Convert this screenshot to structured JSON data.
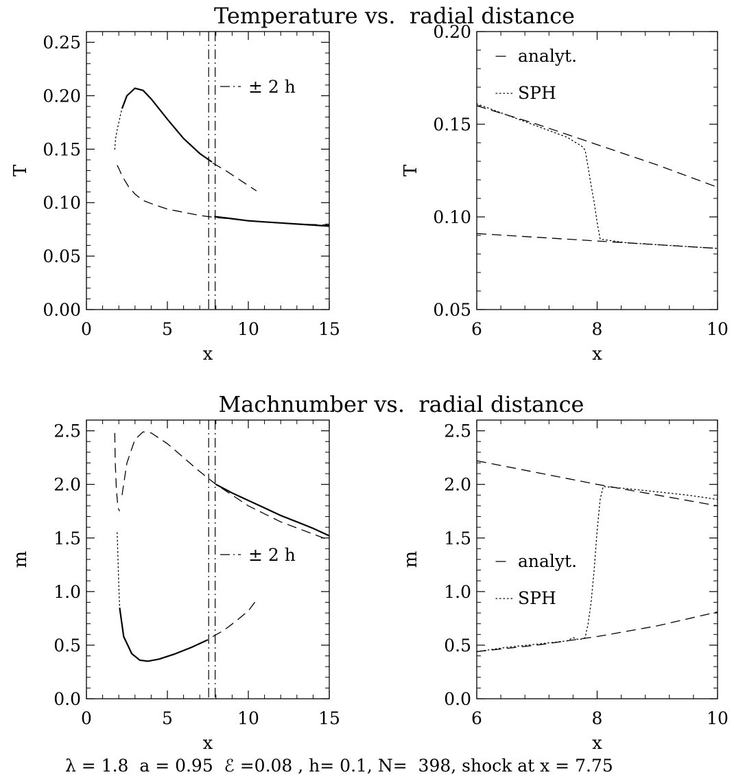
{
  "titles": {
    "top": "Temperature vs.  radial distance",
    "bottom": "Machnumber vs.  radial distance"
  },
  "footer": "λ = 1.8  a = 0.95  ℰ =0.08 , h= 0.1, N=  398, shock at x = 7.75",
  "chart_data": [
    {
      "type": "line",
      "id": "T-full",
      "xlabel": "x",
      "ylabel": "T",
      "xlim": [
        0,
        15
      ],
      "ylim": [
        0,
        0.26
      ],
      "xticks": [
        0,
        5,
        10,
        15
      ],
      "xtick_labels": [
        "0",
        "5",
        "10",
        "15"
      ],
      "yticks": [
        0,
        0.05,
        0.1,
        0.15,
        0.2,
        0.25
      ],
      "ytick_labels": [
        "0.00",
        "0.05",
        "0.10",
        "0.15",
        "0.20",
        "0.25"
      ],
      "annotation": "± 2 h",
      "vlines": [
        7.55,
        7.95
      ],
      "series": [
        {
          "style": "dashed",
          "x": [
            1.9,
            2.0,
            2.2,
            2.6,
            3.0,
            3.5,
            4.2,
            5.0,
            6.0,
            7.0,
            8.0,
            9.5,
            11.0,
            13.0,
            15.0
          ],
          "y": [
            0.135,
            0.132,
            0.125,
            0.115,
            0.108,
            0.102,
            0.098,
            0.094,
            0.091,
            0.088,
            0.086,
            0.084,
            0.082,
            0.08,
            0.079
          ]
        },
        {
          "style": "dashed",
          "x": [
            7.8,
            8.6,
            9.4,
            10.5
          ],
          "y": [
            0.137,
            0.13,
            0.122,
            0.111
          ]
        },
        {
          "style": "dotted",
          "x": [
            1.75,
            1.8,
            1.9,
            2.0,
            2.1,
            2.2
          ],
          "y": [
            0.15,
            0.16,
            0.168,
            0.175,
            0.182,
            0.188
          ]
        },
        {
          "style": "solid",
          "x": [
            2.2,
            2.5,
            3.0,
            3.5,
            4.0,
            5.0,
            6.0,
            7.0,
            7.75
          ],
          "y": [
            0.188,
            0.2,
            0.207,
            0.205,
            0.197,
            0.178,
            0.16,
            0.146,
            0.138
          ]
        },
        {
          "style": "solid",
          "x": [
            7.9,
            9.0,
            10.0,
            11.0,
            12.0,
            13.0,
            14.0,
            15.0
          ],
          "y": [
            0.087,
            0.085,
            0.083,
            0.082,
            0.081,
            0.08,
            0.079,
            0.078
          ]
        }
      ]
    },
    {
      "type": "line",
      "id": "T-zoom",
      "xlabel": "x",
      "ylabel": "T",
      "xlim": [
        6,
        10
      ],
      "ylim": [
        0.05,
        0.2
      ],
      "xticks": [
        6,
        8,
        10
      ],
      "xtick_labels": [
        "6",
        "8",
        "10"
      ],
      "yticks": [
        0.05,
        0.1,
        0.15,
        0.2
      ],
      "ytick_labels": [
        "0.05",
        "0.10",
        "0.15",
        "0.20"
      ],
      "legend": [
        "analyt.",
        "SPH"
      ],
      "legend_position": "top-left",
      "series": [
        {
          "name": "analyt.",
          "style": "dashed",
          "x": [
            6,
            7,
            8,
            9,
            10
          ],
          "y": [
            0.16,
            0.15,
            0.139,
            0.128,
            0.116
          ]
        },
        {
          "name": "analyt.",
          "style": "dashed",
          "x": [
            6,
            7,
            8,
            9,
            10
          ],
          "y": [
            0.091,
            0.089,
            0.087,
            0.085,
            0.083
          ]
        },
        {
          "name": "SPH",
          "style": "dotted",
          "x": [
            6.0,
            6.5,
            7.0,
            7.5,
            7.75,
            7.8,
            7.85,
            7.9,
            7.95,
            8.0,
            8.05,
            8.5,
            9.0,
            9.5,
            10.0
          ],
          "y": [
            0.161,
            0.155,
            0.149,
            0.143,
            0.138,
            0.136,
            0.127,
            0.117,
            0.108,
            0.097,
            0.088,
            0.086,
            0.085,
            0.084,
            0.083
          ]
        }
      ]
    },
    {
      "type": "line",
      "id": "m-full",
      "xlabel": "x",
      "ylabel": "m",
      "xlim": [
        0,
        15
      ],
      "ylim": [
        0,
        2.6
      ],
      "xticks": [
        0,
        5,
        10,
        15
      ],
      "xtick_labels": [
        "0",
        "5",
        "10",
        "15"
      ],
      "yticks": [
        0,
        0.5,
        1.0,
        1.5,
        2.0,
        2.5
      ],
      "ytick_labels": [
        "0.0",
        "0.5",
        "1.0",
        "1.5",
        "2.0",
        "2.5"
      ],
      "annotation": "± 2 h",
      "vlines": [
        7.55,
        7.95
      ],
      "series": [
        {
          "style": "dashed",
          "x": [
            1.75,
            1.78,
            1.85,
            1.95,
            2.05
          ],
          "y": [
            2.48,
            2.2,
            1.95,
            1.78,
            1.75
          ]
        },
        {
          "style": "dashed",
          "x": [
            2.2,
            2.5,
            3.0,
            3.5,
            4.0,
            5.0,
            6.0,
            7.0,
            8.0,
            10.0,
            12.0,
            15.0
          ],
          "y": [
            1.9,
            2.2,
            2.42,
            2.49,
            2.48,
            2.38,
            2.25,
            2.12,
            2.0,
            1.8,
            1.65,
            1.48
          ]
        },
        {
          "style": "dashed",
          "x": [
            7.8,
            8.5,
            9.2,
            10.0,
            10.5
          ],
          "y": [
            0.58,
            0.64,
            0.72,
            0.82,
            0.92
          ]
        },
        {
          "style": "dotted",
          "x": [
            1.9,
            1.95,
            2.0,
            2.05
          ],
          "y": [
            1.55,
            1.3,
            1.05,
            0.85
          ]
        },
        {
          "style": "solid",
          "x": [
            2.05,
            2.3,
            2.8,
            3.3,
            3.8,
            4.5,
            5.5,
            6.5,
            7.5
          ],
          "y": [
            0.85,
            0.58,
            0.42,
            0.36,
            0.35,
            0.37,
            0.42,
            0.48,
            0.55
          ]
        },
        {
          "style": "solid",
          "x": [
            8.0,
            9.0,
            10.0,
            11.0,
            12.0,
            13.0,
            14.0,
            15.0
          ],
          "y": [
            2.0,
            1.92,
            1.85,
            1.78,
            1.71,
            1.65,
            1.59,
            1.52
          ]
        }
      ]
    },
    {
      "type": "line",
      "id": "m-zoom",
      "xlabel": "x",
      "ylabel": "m",
      "xlim": [
        6,
        10
      ],
      "ylim": [
        0,
        2.6
      ],
      "xticks": [
        6,
        8,
        10
      ],
      "xtick_labels": [
        "6",
        "8",
        "10"
      ],
      "yticks": [
        0,
        0.5,
        1.0,
        1.5,
        2.0,
        2.5
      ],
      "ytick_labels": [
        "0.0",
        "0.5",
        "1.0",
        "1.5",
        "2.0",
        "2.5"
      ],
      "legend": [
        "analyt.",
        "SPH"
      ],
      "legend_position": "center-left",
      "series": [
        {
          "name": "analyt.",
          "style": "dashed",
          "x": [
            6,
            7,
            8,
            9,
            10
          ],
          "y": [
            2.22,
            2.11,
            2.0,
            1.9,
            1.8
          ]
        },
        {
          "name": "analyt.",
          "style": "dashed",
          "x": [
            6,
            7,
            8,
            9,
            10
          ],
          "y": [
            0.44,
            0.5,
            0.58,
            0.68,
            0.81
          ]
        },
        {
          "name": "SPH",
          "style": "dotted",
          "x": [
            6.0,
            6.5,
            7.0,
            7.5,
            7.6,
            7.7,
            7.8,
            7.85,
            7.9,
            7.95,
            8.0,
            8.05,
            8.1,
            8.5,
            9.0,
            9.5,
            10.0
          ],
          "y": [
            0.44,
            0.48,
            0.51,
            0.54,
            0.57,
            0.55,
            0.57,
            0.7,
            0.9,
            1.2,
            1.57,
            1.86,
            1.98,
            1.96,
            1.93,
            1.9,
            1.86
          ]
        }
      ]
    }
  ]
}
